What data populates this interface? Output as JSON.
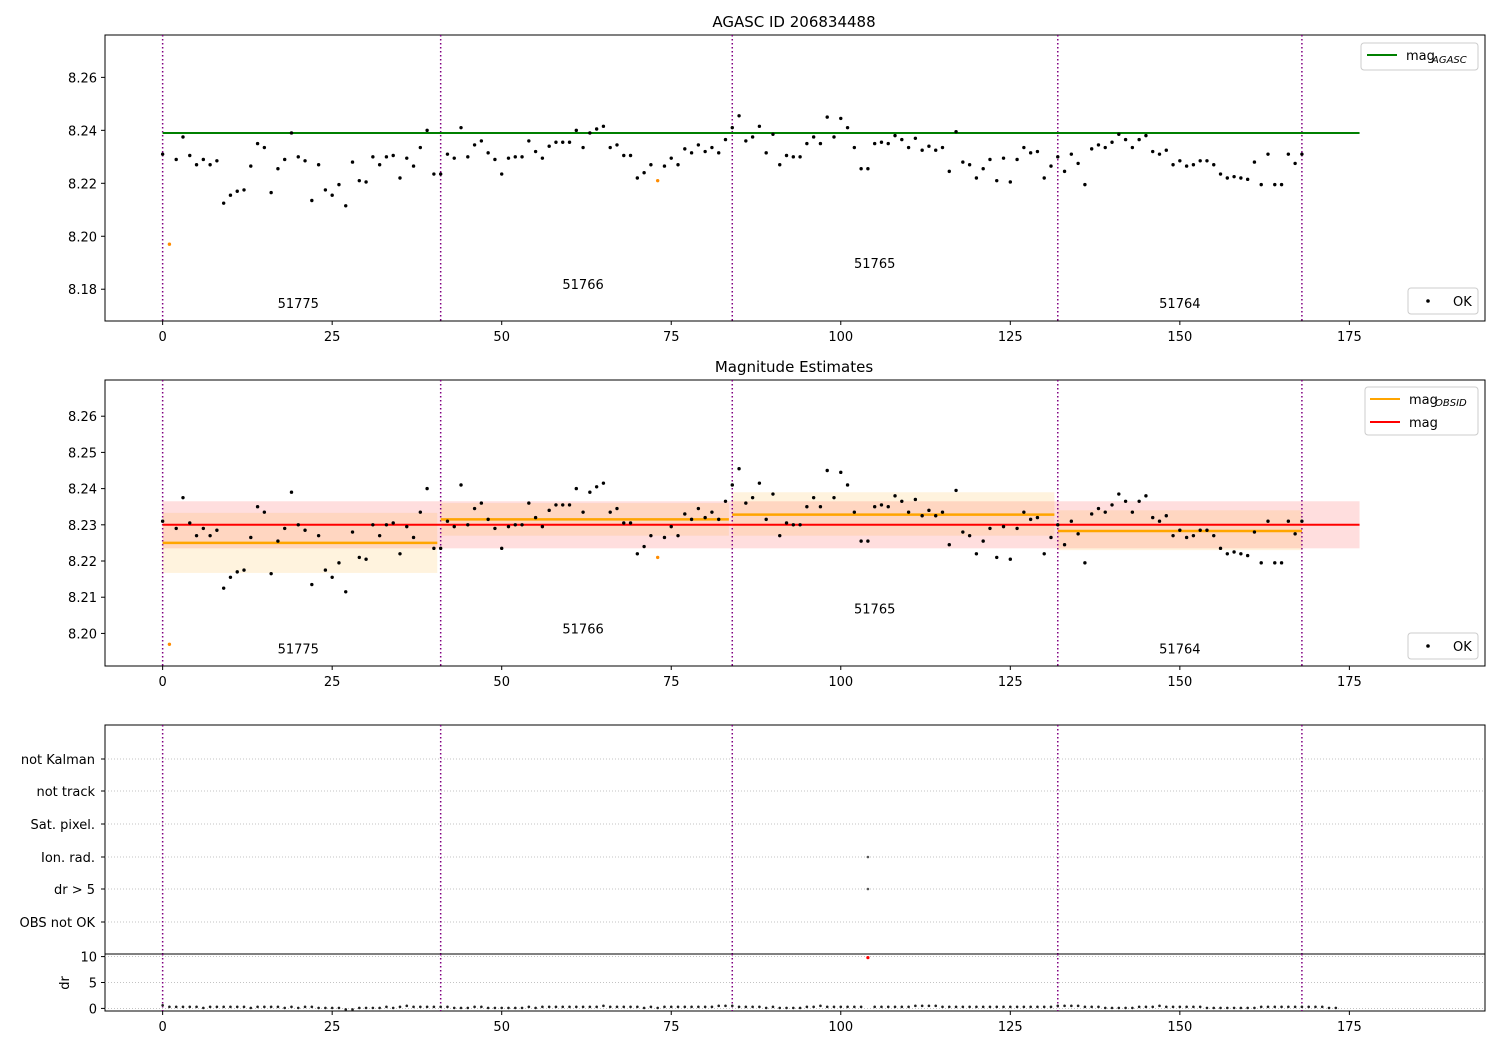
{
  "figure": {
    "title": "AGASC ID 206834488"
  },
  "colors": {
    "points_ok": "#000000",
    "points_outlier": "#ff8c00",
    "agasc_line": "#008000",
    "obsid_line": "#ffa500",
    "mag_line": "#ff0000",
    "mag_band": "#ffb6b6",
    "obsid_band": "#fde6b8",
    "obsid_band_alt": "#ffb08a",
    "obsid_boundary": "#800080",
    "dr_flag_point": "#ff0000"
  },
  "chart_data": [
    {
      "type": "scatter",
      "title": "AGASC ID 206834488",
      "xlim": [
        -8.5,
        195
      ],
      "ylim": [
        8.168,
        8.276
      ],
      "xticks": [
        "0",
        "25",
        "50",
        "75",
        "100",
        "125",
        "150",
        "175"
      ],
      "yticks": [
        "8.18",
        "8.20",
        "8.22",
        "8.24",
        "8.26"
      ],
      "obsid_boundaries": [
        0,
        41,
        84,
        132,
        168
      ],
      "obsid_labels": [
        {
          "label": "51775",
          "x": 20,
          "y": 8.173
        },
        {
          "label": "51766",
          "x": 62,
          "y": 8.18
        },
        {
          "label": "51765",
          "x": 105,
          "y": 8.188
        },
        {
          "label": "51764",
          "x": 150,
          "y": 8.173
        }
      ],
      "lines": [
        {
          "name": "mag_AGASC",
          "x": [
            0,
            176.5
          ],
          "y": [
            8.239,
            8.239
          ]
        }
      ],
      "legends": [
        {
          "entries": [
            "mag",
            "AGASC"
          ],
          "placement": "top-right"
        },
        {
          "entries": [
            "OK"
          ],
          "placement": "bottom-right"
        }
      ],
      "outliers": [
        {
          "x": 1,
          "y": 8.197
        },
        {
          "x": 73,
          "y": 8.221
        }
      ]
    },
    {
      "type": "scatter",
      "title": "Magnitude Estimates",
      "xlim": [
        -8.5,
        195
      ],
      "ylim": [
        8.191,
        8.27
      ],
      "xticks": [
        "0",
        "25",
        "50",
        "75",
        "100",
        "125",
        "150",
        "175"
      ],
      "yticks": [
        "8.20",
        "8.21",
        "8.22",
        "8.23",
        "8.24",
        "8.25",
        "8.26"
      ],
      "obsid_boundaries": [
        0,
        41,
        84,
        132,
        168
      ],
      "obsid_labels": [
        {
          "label": "51775",
          "x": 20,
          "y": 8.1945
        },
        {
          "label": "51766",
          "x": 62,
          "y": 8.2
        },
        {
          "label": "51765",
          "x": 105,
          "y": 8.2055
        },
        {
          "label": "51764",
          "x": 150,
          "y": 8.1945
        }
      ],
      "mag": {
        "name": "mag",
        "x": [
          0,
          176.5
        ],
        "value": 8.23,
        "band": [
          8.2235,
          8.2365
        ]
      },
      "obsid_estimates": [
        {
          "x0": 0,
          "x1": 40.5,
          "value": 8.225,
          "band": [
            8.2167,
            8.2333
          ]
        },
        {
          "x0": 41,
          "x1": 83.5,
          "value": 8.2315,
          "band": [
            8.227,
            8.236
          ]
        },
        {
          "x0": 84,
          "x1": 131.5,
          "value": 8.2328,
          "band": [
            8.227,
            8.239
          ]
        },
        {
          "x0": 132,
          "x1": 168,
          "value": 8.2283,
          "band": [
            8.223,
            8.234
          ]
        }
      ],
      "legends": [
        {
          "entries": [
            "mag",
            "OBSID",
            "mag"
          ],
          "placement": "top-right"
        },
        {
          "entries": [
            "OK"
          ],
          "placement": "bottom-right"
        }
      ],
      "outliers": [
        {
          "x": 1,
          "y": 8.197
        },
        {
          "x": 73,
          "y": 8.221
        }
      ]
    },
    {
      "type": "scatter",
      "title": "",
      "xlim": [
        -8.5,
        195
      ],
      "flag_labels": [
        "not Kalman",
        "not track",
        "Sat. pixel.",
        "Ion. rad.",
        "dr > 5",
        "OBS not OK"
      ],
      "flag_points": [
        {
          "x": 104,
          "flag": "Ion. rad."
        },
        {
          "x": 104,
          "flag": "dr > 5"
        }
      ],
      "obsid_boundaries": [
        0,
        41,
        84,
        132,
        168
      ]
    },
    {
      "type": "scatter",
      "title": "",
      "xlim": [
        -8.5,
        195
      ],
      "ylim": [
        -0.5,
        10.5
      ],
      "ylabel": "dr",
      "xticks": [
        "0",
        "25",
        "50",
        "75",
        "100",
        "125",
        "150",
        "175"
      ],
      "yticks": [
        "0",
        "5",
        "10"
      ],
      "obsid_boundaries": [
        0,
        41,
        84,
        132,
        168
      ],
      "dr_values": [
        0.6,
        0.3,
        0.3,
        0.3,
        0.3,
        0.3,
        0.1,
        0.3,
        0.3,
        0.3,
        0.3,
        0.3,
        0.3,
        0.1,
        0.3,
        0.3,
        0.3,
        0.3,
        0.1,
        0.3,
        0.1,
        0.3,
        0.3,
        0.1,
        0.1,
        0.1,
        0.1,
        -0.2,
        -0.2,
        0.1,
        0.1,
        0.1,
        0.1,
        0.3,
        0.1,
        0.3,
        0.5,
        0.3,
        0.3,
        0.3,
        0.3,
        0.3,
        0.3,
        0.1,
        0.1,
        0.1,
        0.3,
        0.3,
        0.1,
        0.1,
        0.1,
        0.1,
        0.1,
        0.1,
        0.3,
        0.1,
        0.3,
        0.3,
        0.3,
        0.3,
        0.3,
        0.3,
        0.3,
        0.3,
        0.3,
        0.5,
        0.3,
        0.3,
        0.3,
        0.3,
        0.3,
        0.1,
        0.3,
        0.1,
        0.3,
        0.3,
        0.3,
        0.3,
        0.3,
        0.3,
        0.3,
        0.3,
        0.5,
        0.5,
        0.5,
        0.3,
        0.3,
        0.3,
        0.3,
        0.1,
        0.3,
        0.1,
        0.1,
        0.1,
        0.1,
        0.3,
        0.3,
        0.5,
        0.3,
        0.3,
        0.3,
        0.3,
        0.3,
        0.3,
        9.8,
        0.3,
        0.3,
        0.3,
        0.3,
        0.3,
        0.3,
        0.5,
        0.5,
        0.5,
        0.5,
        0.3,
        0.3,
        0.3,
        0.3,
        0.3,
        0.3,
        0.3,
        0.3,
        0.3,
        0.3,
        0.3,
        0.3,
        0.3,
        0.3,
        0.3,
        0.3,
        0.3,
        0.5,
        0.5,
        0.5,
        0.5,
        0.3,
        0.3,
        0.3,
        0.1,
        0.1,
        0.1,
        0.1,
        0.1,
        0.3,
        0.3,
        0.3,
        0.5,
        0.3,
        0.3,
        0.3,
        0.3,
        0.3,
        0.3,
        0.1,
        0.1,
        0.1,
        0.1,
        0.1,
        0.1,
        0.1,
        0.1,
        0.3,
        0.3,
        0.3,
        0.3,
        0.3,
        0.3,
        0.3,
        0.3,
        0.3,
        0.3,
        0.1,
        0.1
      ],
      "dr_flagged": [
        {
          "x": 104,
          "y": 9.8
        }
      ]
    }
  ],
  "magnitudes": {
    "x": [
      0,
      1,
      2,
      3,
      4,
      5,
      6,
      7,
      8,
      9,
      10,
      11,
      12,
      13,
      14,
      15,
      16,
      17,
      18,
      19,
      20,
      21,
      22,
      23,
      24,
      25,
      26,
      27,
      28,
      29,
      30,
      31,
      32,
      33,
      34,
      35,
      36,
      37,
      38,
      39,
      40,
      41,
      42,
      43,
      44,
      45,
      46,
      47,
      48,
      49,
      50,
      51,
      52,
      53,
      54,
      55,
      56,
      57,
      58,
      59,
      60,
      61,
      62,
      63,
      64,
      65,
      66,
      67,
      68,
      69,
      70,
      71,
      72,
      73,
      74,
      75,
      76,
      77,
      78,
      79,
      80,
      81,
      82,
      83,
      84,
      85,
      86,
      87,
      88,
      89,
      90,
      91,
      92,
      93,
      94,
      95,
      96,
      97,
      98,
      99,
      100,
      101,
      102,
      103,
      104,
      105,
      106,
      107,
      108,
      109,
      110,
      111,
      112,
      113,
      114,
      115,
      116,
      117,
      118,
      119,
      120,
      121,
      122,
      123,
      124,
      125,
      126,
      127,
      128,
      129,
      130,
      131,
      132,
      133,
      134,
      135,
      136,
      137,
      138,
      139,
      140,
      141,
      142,
      143,
      144,
      145,
      146,
      147,
      148,
      149,
      150,
      151,
      152,
      153,
      154,
      155,
      156,
      157,
      158,
      159,
      160,
      161,
      162,
      163,
      164,
      165,
      166,
      167,
      168
    ],
    "y": [
      8.231,
      8.197,
      8.229,
      8.2375,
      8.2305,
      8.227,
      8.229,
      8.227,
      8.2285,
      8.2125,
      8.2155,
      8.217,
      8.2175,
      8.2265,
      8.235,
      8.2335,
      8.2165,
      8.2255,
      8.229,
      8.239,
      8.23,
      8.2285,
      8.2135,
      8.227,
      8.2175,
      8.2155,
      8.2195,
      8.2115,
      8.228,
      8.221,
      8.2205,
      8.23,
      8.227,
      8.23,
      8.2305,
      8.222,
      8.2295,
      8.2265,
      8.2335,
      8.24,
      8.2235,
      8.2235,
      8.231,
      8.2295,
      8.241,
      8.23,
      8.2345,
      8.236,
      8.2315,
      8.229,
      8.2235,
      8.2295,
      8.23,
      8.23,
      8.236,
      8.232,
      8.2295,
      8.234,
      8.2355,
      8.2355,
      8.2355,
      8.24,
      8.2335,
      8.239,
      8.2405,
      8.2415,
      8.2335,
      8.2345,
      8.2305,
      8.2305,
      8.222,
      8.224,
      8.227,
      8.221,
      8.2265,
      8.2295,
      8.227,
      8.233,
      8.2315,
      8.2345,
      8.232,
      8.2335,
      8.2315,
      8.2365,
      8.241,
      8.2455,
      8.236,
      8.2375,
      8.2415,
      8.2315,
      8.2385,
      8.227,
      8.2305,
      8.23,
      8.23,
      8.235,
      8.2375,
      8.235,
      8.245,
      8.2375,
      8.2445,
      8.241,
      8.2335,
      8.2255,
      8.2255,
      8.235,
      8.2355,
      8.235,
      8.238,
      8.2365,
      8.2335,
      8.237,
      8.2325,
      8.234,
      8.2325,
      8.2335,
      8.2245,
      8.2395,
      8.228,
      8.227,
      8.222,
      8.2255,
      8.229,
      8.221,
      8.2295,
      8.2205,
      8.229,
      8.2335,
      8.2315,
      8.232,
      8.222,
      8.2265,
      8.23,
      8.2245,
      8.231,
      8.2275,
      8.2195,
      8.233,
      8.2345,
      8.2335,
      8.2355,
      8.2385,
      8.2365,
      8.2335,
      8.2365,
      8.238,
      8.232,
      8.231,
      8.2325,
      8.227,
      8.2285,
      8.2265,
      8.227,
      8.2285,
      8.2285,
      8.227,
      8.2235,
      8.222,
      8.2225,
      8.222,
      8.2215,
      8.228,
      8.2195,
      8.231,
      8.2195,
      8.2195,
      8.231,
      8.2275,
      8.231
    ],
    "outlier_indices": [
      1,
      73
    ]
  }
}
